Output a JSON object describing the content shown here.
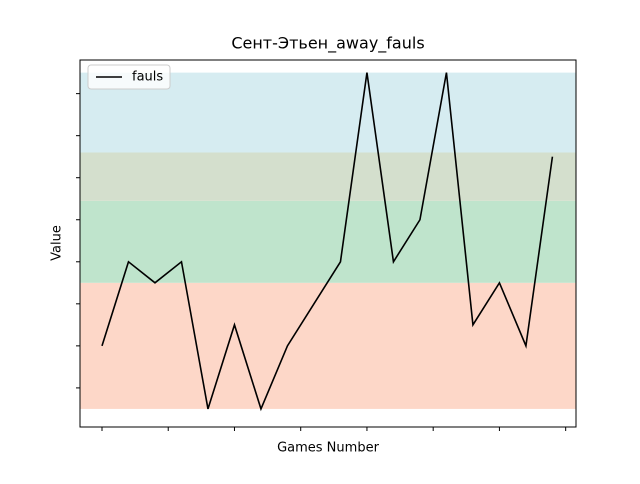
{
  "chart_data": {
    "type": "line",
    "title": "Сент-Этьен_away_fauls",
    "xlabel": "Games Number",
    "ylabel": "Value",
    "x": [
      0,
      1,
      2,
      3,
      4,
      5,
      6,
      7,
      8,
      9,
      10,
      11,
      12,
      13,
      14,
      15,
      16,
      17
    ],
    "series": [
      {
        "name": "fauls",
        "color": "#000000",
        "values": [
          8,
          12,
          11,
          12,
          5,
          9,
          5,
          8,
          10,
          12,
          21,
          12,
          14,
          21,
          9,
          11,
          8,
          17
        ]
      }
    ],
    "xlim": [
      -0.83,
      17.89
    ],
    "xticks": [
      0,
      2.5,
      5,
      7.5,
      10,
      12.5,
      15,
      17.5
    ],
    "ylim": [
      4.14,
      21.6
    ],
    "yticks": [
      6,
      8,
      10,
      12,
      14,
      16,
      18,
      20
    ],
    "bands": [
      {
        "from": 5,
        "to": 11,
        "color": "#fdd7c8"
      },
      {
        "from": 11,
        "to": 14.9,
        "color": "#bfe4cc"
      },
      {
        "from": 14.9,
        "to": 17.2,
        "color": "#d4dfcd"
      },
      {
        "from": 17.2,
        "to": 21,
        "color": "#d6ecf1"
      }
    ],
    "legend": "upper left"
  }
}
